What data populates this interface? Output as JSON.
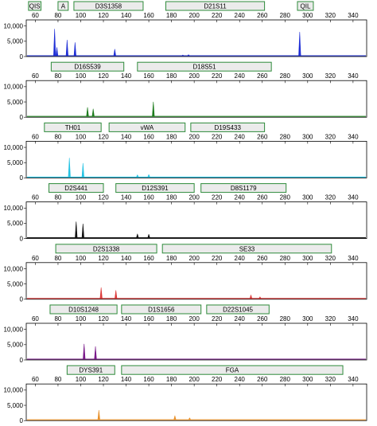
{
  "chart_data": {
    "type": "line",
    "description_axis": "x axis = size (bp), y axis = RFU",
    "xlim": [
      52,
      352
    ],
    "x_ticks": [
      60,
      80,
      100,
      120,
      140,
      160,
      180,
      200,
      220,
      240,
      260,
      280,
      300,
      320,
      340
    ],
    "ylim": [
      0,
      12000
    ],
    "y_ticks": [
      0,
      5000,
      10000
    ],
    "y_tick_labels": [
      "0",
      "5,000",
      "10,000"
    ],
    "grid": false,
    "legend": "none",
    "panels": [
      {
        "color": "#1f2fd6",
        "markers": [
          {
            "label": "QIS",
            "start": 54,
            "end": 65,
            "outline": "#2e8b3a"
          },
          {
            "label": "A",
            "start": 80,
            "end": 89,
            "outline": "#2e8b3a"
          },
          {
            "label": "D3S1358",
            "start": 94,
            "end": 155,
            "outline": "#2e8b3a"
          },
          {
            "label": "D21S11",
            "start": 175,
            "end": 262,
            "outline": "#2e8b3a"
          },
          {
            "label": "QIL",
            "start": 291,
            "end": 305,
            "outline": "#2e8b3a"
          }
        ],
        "peaks": [
          {
            "x": 77,
            "y": 9000
          },
          {
            "x": 79,
            "y": 3000
          },
          {
            "x": 88,
            "y": 5400
          },
          {
            "x": 95,
            "y": 4600
          },
          {
            "x": 130,
            "y": 2400
          },
          {
            "x": 190,
            "y": 500
          },
          {
            "x": 195,
            "y": 600
          },
          {
            "x": 293,
            "y": 8000
          }
        ]
      },
      {
        "color": "#1e7d1e",
        "markers": [
          {
            "label": "D16S539",
            "start": 74,
            "end": 138,
            "outline": "#2e8b3a"
          },
          {
            "label": "D18S51",
            "start": 150,
            "end": 268,
            "outline": "#2e8b3a"
          }
        ],
        "peaks": [
          {
            "x": 106,
            "y": 3200
          },
          {
            "x": 111,
            "y": 2700
          },
          {
            "x": 164,
            "y": 5000
          }
        ]
      },
      {
        "color": "#25c3e3",
        "markers": [
          {
            "label": "TH01",
            "start": 68,
            "end": 118,
            "outline": "#2e8b3a"
          },
          {
            "label": "vWA",
            "start": 125,
            "end": 192,
            "outline": "#2e8b3a"
          },
          {
            "label": "D19S433",
            "start": 197,
            "end": 262,
            "outline": "#2e8b3a"
          }
        ],
        "peaks": [
          {
            "x": 90,
            "y": 6500
          },
          {
            "x": 102,
            "y": 4800
          },
          {
            "x": 150,
            "y": 1000
          },
          {
            "x": 160,
            "y": 1100
          }
        ]
      },
      {
        "color": "#111111",
        "markers": [
          {
            "label": "D2S441",
            "start": 72,
            "end": 120,
            "outline": "#2e8b3a"
          },
          {
            "label": "D12S391",
            "start": 131,
            "end": 200,
            "outline": "#2e8b3a"
          },
          {
            "label": "D8S1179",
            "start": 206,
            "end": 281,
            "outline": "#2e8b3a"
          }
        ],
        "peaks": [
          {
            "x": 96,
            "y": 5500
          },
          {
            "x": 102,
            "y": 4800
          },
          {
            "x": 150,
            "y": 1500
          },
          {
            "x": 160,
            "y": 1400
          }
        ]
      },
      {
        "color": "#dc3a3a",
        "markers": [
          {
            "label": "D2S1338",
            "start": 78,
            "end": 167,
            "outline": "#2e8b3a"
          },
          {
            "label": "SE33",
            "start": 172,
            "end": 321,
            "outline": "#2e8b3a"
          }
        ],
        "peaks": [
          {
            "x": 118,
            "y": 3800
          },
          {
            "x": 131,
            "y": 2900
          },
          {
            "x": 250,
            "y": 1400
          },
          {
            "x": 258,
            "y": 800
          }
        ]
      },
      {
        "color": "#7a1a8a",
        "markers": [
          {
            "label": "D10S1248",
            "start": 73,
            "end": 132,
            "outline": "#2e8b3a"
          },
          {
            "label": "D1S1656",
            "start": 136,
            "end": 206,
            "outline": "#2e8b3a"
          },
          {
            "label": "D22S1045",
            "start": 211,
            "end": 266,
            "outline": "#2e8b3a"
          }
        ],
        "peaks": [
          {
            "x": 103,
            "y": 5200
          },
          {
            "x": 113,
            "y": 4400
          },
          {
            "x": 182,
            "y": 300
          }
        ]
      },
      {
        "color": "#e8902a",
        "markers": [
          {
            "label": "DYS391",
            "start": 88,
            "end": 130,
            "outline": "#2e8b3a"
          },
          {
            "label": "FGA",
            "start": 136,
            "end": 331,
            "outline": "#2e8b3a"
          }
        ],
        "peaks": [
          {
            "x": 116,
            "y": 3400
          },
          {
            "x": 183,
            "y": 1600
          },
          {
            "x": 196,
            "y": 900
          }
        ]
      }
    ]
  }
}
